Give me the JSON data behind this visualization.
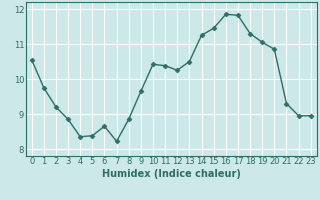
{
  "x": [
    0,
    1,
    2,
    3,
    4,
    5,
    6,
    7,
    8,
    9,
    10,
    11,
    12,
    13,
    14,
    15,
    16,
    17,
    18,
    19,
    20,
    21,
    22,
    23
  ],
  "y": [
    10.55,
    9.75,
    9.2,
    8.85,
    8.35,
    8.38,
    8.65,
    8.22,
    8.85,
    9.65,
    10.42,
    10.38,
    10.25,
    10.5,
    11.25,
    11.45,
    11.85,
    11.82,
    11.3,
    11.05,
    10.85,
    9.3,
    8.95,
    8.95
  ],
  "line_color": "#2e6e65",
  "marker": "D",
  "markersize": 2.5,
  "linewidth": 1.0,
  "bg_color": "#cce8e8",
  "grid_color": "#ffffff",
  "xlabel": "Humidex (Indice chaleur)",
  "xlabel_fontsize": 7,
  "tick_color": "#2e6e65",
  "tick_fontsize": 6,
  "ylim": [
    7.8,
    12.2
  ],
  "xlim": [
    -0.5,
    23.5
  ],
  "yticks": [
    8,
    9,
    10,
    11,
    12
  ],
  "xticks": [
    0,
    1,
    2,
    3,
    4,
    5,
    6,
    7,
    8,
    9,
    10,
    11,
    12,
    13,
    14,
    15,
    16,
    17,
    18,
    19,
    20,
    21,
    22,
    23
  ]
}
